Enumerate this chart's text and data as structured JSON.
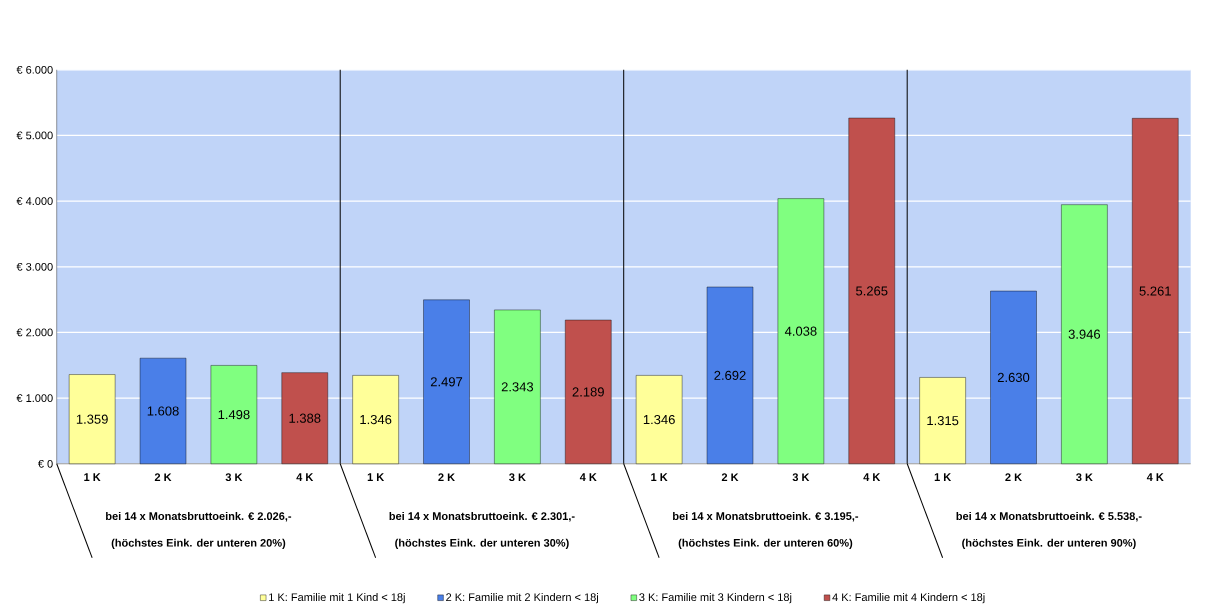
{
  "chart_data": {
    "type": "bar",
    "categories": [
      "1 K",
      "2 K",
      "3 K",
      "4 K",
      "1 K",
      "2 K",
      "3 K",
      "4 K",
      "1 K",
      "2 K",
      "3 K",
      "4 K",
      "1 K",
      "2 K",
      "3 K",
      "4 K"
    ],
    "series": [
      {
        "name": "1 K: Familie mit 1 Kind < 18j",
        "color": "#ffff99",
        "values": [
          1359,
          null,
          null,
          null,
          1346,
          null,
          null,
          null,
          1346,
          null,
          null,
          null,
          1315,
          null,
          null,
          null
        ],
        "value_labels": [
          "1.359",
          null,
          null,
          null,
          "1.346",
          null,
          null,
          null,
          "1.346",
          null,
          null,
          null,
          "1.315",
          null,
          null,
          null
        ]
      },
      {
        "name": "2 K: Familie mit 2 Kindern < 18j",
        "color": "#4a7fe8",
        "values": [
          null,
          1608,
          null,
          null,
          null,
          2497,
          null,
          null,
          null,
          2692,
          null,
          null,
          null,
          2630,
          null,
          null
        ],
        "value_labels": [
          null,
          "1.608",
          null,
          null,
          null,
          "2.497",
          null,
          null,
          null,
          "2.692",
          null,
          null,
          null,
          "2.630",
          null,
          null
        ]
      },
      {
        "name": "3 K: Familie mit 3 Kindern < 18j",
        "color": "#80ff80",
        "values": [
          null,
          null,
          1498,
          null,
          null,
          null,
          2343,
          null,
          null,
          null,
          4038,
          null,
          null,
          null,
          3946,
          null
        ],
        "value_labels": [
          null,
          null,
          "1.498",
          null,
          null,
          null,
          "2.343",
          null,
          null,
          null,
          "4.038",
          null,
          null,
          null,
          "3.946",
          null
        ]
      },
      {
        "name": "4 K: Familie mit 4 Kindern < 18j",
        "color": "#c0504d",
        "values": [
          null,
          null,
          null,
          1388,
          null,
          null,
          null,
          2189,
          null,
          null,
          null,
          5265,
          null,
          null,
          null,
          5261
        ],
        "value_labels": [
          null,
          null,
          null,
          "1.388",
          null,
          null,
          null,
          "2.189",
          null,
          null,
          null,
          "5.265",
          null,
          null,
          null,
          "5.261"
        ]
      }
    ],
    "ylim": [
      0,
      6000
    ],
    "yticks": [
      {
        "value": 0,
        "label": "€ 0"
      },
      {
        "value": 1000,
        "label": "€ 1.000"
      },
      {
        "value": 2000,
        "label": "€ 2.000"
      },
      {
        "value": 3000,
        "label": "€ 3.000"
      },
      {
        "value": 4000,
        "label": "€ 4.000"
      },
      {
        "value": 5000,
        "label": "€ 5.000"
      },
      {
        "value": 6000,
        "label": "€ 6.000"
      }
    ],
    "grid": "y",
    "legend": "bottom",
    "annotations": [
      "bei 14 x Monatsbruttoeink. € 2.026,-",
      "(höchstes Eink. der unteren 20%)",
      "bei 14 x Monatsbruttoeink. € 2.301,-",
      "(höchstes Eink. der unteren 30%)",
      "bei 14 x Monatsbruttoeink. € 3.195,-",
      "(höchstes Eink. der unteren 60%)",
      "bei 14 x Monatsbruttoeink. € 5.538,-",
      "(höchstes Eink. der unteren 90%)"
    ]
  }
}
